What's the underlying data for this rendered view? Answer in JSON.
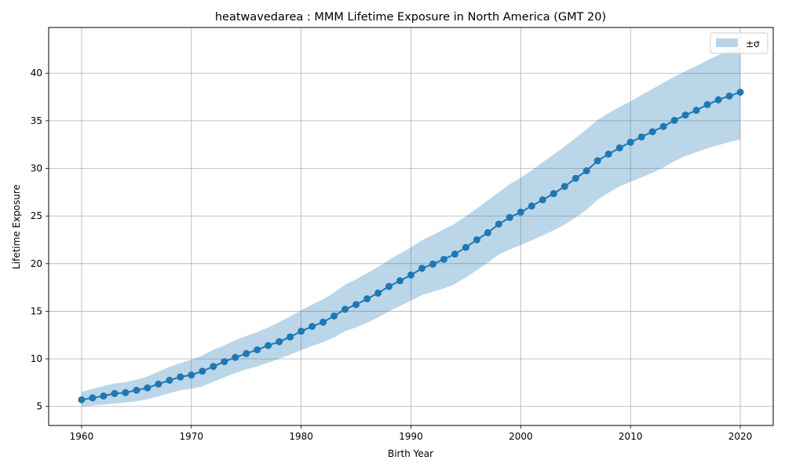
{
  "chart_data": {
    "type": "line",
    "title": "heatwavedarea : MMM Lifetime Exposure in North America (GMT 20)",
    "xlabel": "Birth Year",
    "ylabel": "Lifetime Exposure",
    "xlim": [
      1957,
      2023
    ],
    "ylim": [
      3,
      44.8
    ],
    "xticks": [
      1960,
      1970,
      1980,
      1990,
      2000,
      2010,
      2020
    ],
    "yticks": [
      5,
      10,
      15,
      20,
      25,
      30,
      35,
      40
    ],
    "grid": true,
    "legend_position": "top-right",
    "series": [
      {
        "role": "mean",
        "color": "#1f77b4",
        "x": [
          1960,
          1961,
          1962,
          1963,
          1964,
          1965,
          1966,
          1967,
          1968,
          1969,
          1970,
          1971,
          1972,
          1973,
          1974,
          1975,
          1976,
          1977,
          1978,
          1979,
          1980,
          1981,
          1982,
          1983,
          1984,
          1985,
          1986,
          1987,
          1988,
          1989,
          1990,
          1991,
          1992,
          1993,
          1994,
          1995,
          1996,
          1997,
          1998,
          1999,
          2000,
          2001,
          2002,
          2003,
          2004,
          2005,
          2006,
          2007,
          2008,
          2009,
          2010,
          2011,
          2012,
          2013,
          2014,
          2015,
          2016,
          2017,
          2018,
          2019,
          2020
        ],
        "y": [
          5.7,
          5.9,
          6.1,
          6.35,
          6.45,
          6.7,
          6.95,
          7.35,
          7.75,
          8.1,
          8.3,
          8.7,
          9.2,
          9.7,
          10.15,
          10.55,
          10.95,
          11.4,
          11.8,
          12.3,
          12.9,
          13.4,
          13.85,
          14.5,
          15.2,
          15.7,
          16.3,
          16.9,
          17.6,
          18.2,
          18.8,
          19.5,
          19.95,
          20.45,
          21.0,
          21.7,
          22.5,
          23.25,
          24.15,
          24.85,
          25.4,
          26.05,
          26.7,
          27.35,
          28.1,
          28.95,
          29.75,
          30.8,
          31.5,
          32.15,
          32.75,
          33.3,
          33.85,
          34.4,
          35.05,
          35.6,
          36.1,
          36.7,
          37.2,
          37.6,
          38.0
        ]
      },
      {
        "role": "band",
        "name": "±σ",
        "color": "#1f77b4",
        "opacity": 0.3,
        "x": [
          1960,
          1961,
          1962,
          1963,
          1964,
          1965,
          1966,
          1967,
          1968,
          1969,
          1970,
          1971,
          1972,
          1973,
          1974,
          1975,
          1976,
          1977,
          1978,
          1979,
          1980,
          1981,
          1982,
          1983,
          1984,
          1985,
          1986,
          1987,
          1988,
          1989,
          1990,
          1991,
          1992,
          1993,
          1994,
          1995,
          1996,
          1997,
          1998,
          1999,
          2000,
          2001,
          2002,
          2003,
          2004,
          2005,
          2006,
          2007,
          2008,
          2009,
          2010,
          2011,
          2012,
          2013,
          2014,
          2015,
          2016,
          2017,
          2018,
          2019,
          2020
        ],
        "upper": [
          6.5,
          6.85,
          7.15,
          7.4,
          7.55,
          7.8,
          8.15,
          8.65,
          9.15,
          9.55,
          9.9,
          10.35,
          10.95,
          11.4,
          11.95,
          12.4,
          12.8,
          13.3,
          13.85,
          14.45,
          15.1,
          15.7,
          16.25,
          16.95,
          17.8,
          18.35,
          19.0,
          19.65,
          20.4,
          21.05,
          21.7,
          22.45,
          23.0,
          23.6,
          24.2,
          24.95,
          25.8,
          26.65,
          27.5,
          28.35,
          29.0,
          29.8,
          30.65,
          31.45,
          32.3,
          33.2,
          34.1,
          35.1,
          35.8,
          36.45,
          37.05,
          37.7,
          38.35,
          39.0,
          39.65,
          40.2,
          40.75,
          41.35,
          41.9,
          42.35,
          42.8
        ],
        "lower": [
          5.0,
          5.1,
          5.2,
          5.3,
          5.4,
          5.55,
          5.75,
          6.05,
          6.4,
          6.7,
          6.85,
          7.1,
          7.6,
          8.05,
          8.5,
          8.9,
          9.2,
          9.6,
          10.0,
          10.45,
          10.9,
          11.35,
          11.75,
          12.25,
          12.9,
          13.3,
          13.8,
          14.35,
          15.0,
          15.55,
          16.1,
          16.7,
          17.05,
          17.4,
          17.85,
          18.55,
          19.3,
          20.1,
          20.95,
          21.5,
          21.95,
          22.45,
          22.95,
          23.5,
          24.1,
          24.85,
          25.65,
          26.7,
          27.45,
          28.1,
          28.6,
          29.05,
          29.55,
          30.1,
          30.75,
          31.3,
          31.7,
          32.1,
          32.45,
          32.75,
          33.05
        ]
      }
    ],
    "legend": [
      {
        "label": "±σ",
        "swatch_color": "#b9d3ea"
      }
    ]
  }
}
